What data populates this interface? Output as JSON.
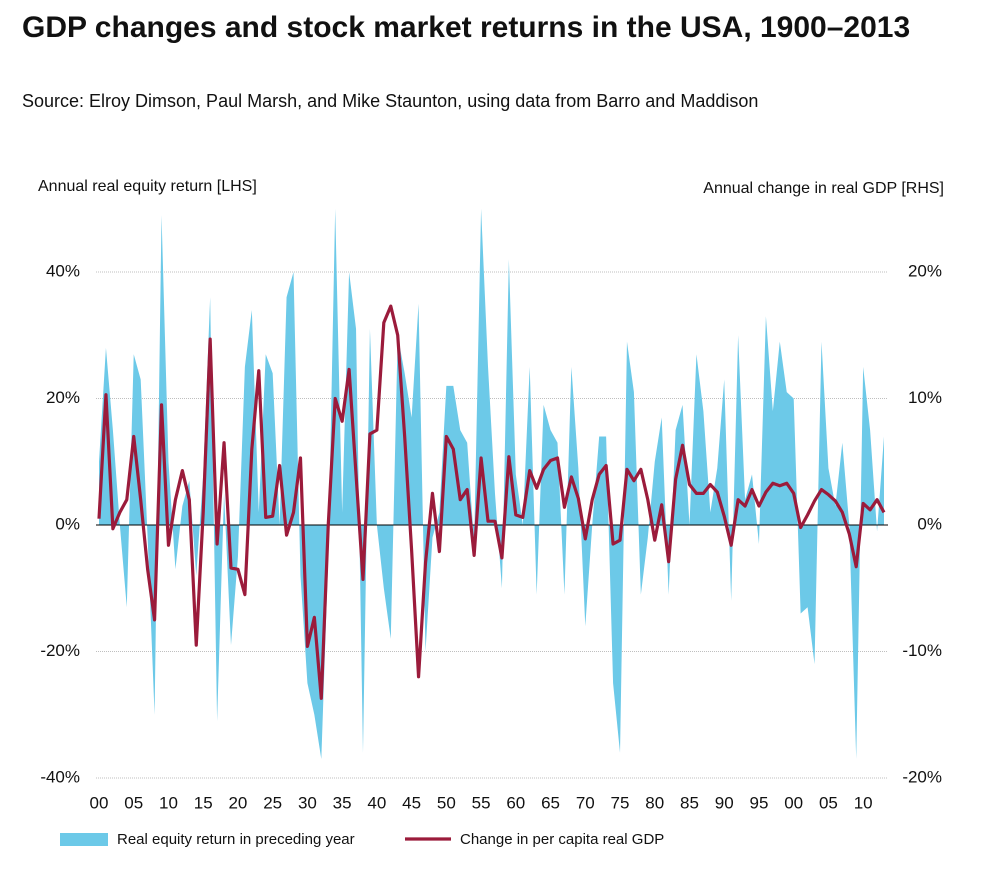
{
  "chart_data": {
    "type": "combo",
    "title": "GDP changes and stock market returns in the USA, 1900–2013",
    "subtitle": "Source: Elroy Dimson, Paul Marsh, and Mike Staunton, using data from Barro and Maddison",
    "y_label": "Annual real equity return [LHS]",
    "y2_label": "Annual change in real GDP [RHS]",
    "x": [
      1900,
      1901,
      1902,
      1903,
      1904,
      1905,
      1906,
      1907,
      1908,
      1909,
      1910,
      1911,
      1912,
      1913,
      1914,
      1915,
      1916,
      1917,
      1918,
      1919,
      1920,
      1921,
      1922,
      1923,
      1924,
      1925,
      1926,
      1927,
      1928,
      1929,
      1930,
      1931,
      1932,
      1933,
      1934,
      1935,
      1936,
      1937,
      1938,
      1939,
      1940,
      1941,
      1942,
      1943,
      1944,
      1945,
      1946,
      1947,
      1948,
      1949,
      1950,
      1951,
      1952,
      1953,
      1954,
      1955,
      1956,
      1957,
      1958,
      1959,
      1960,
      1961,
      1962,
      1963,
      1964,
      1965,
      1966,
      1967,
      1968,
      1969,
      1970,
      1971,
      1972,
      1973,
      1974,
      1975,
      1976,
      1977,
      1978,
      1979,
      1980,
      1981,
      1982,
      1983,
      1984,
      1985,
      1986,
      1987,
      1988,
      1989,
      1990,
      1991,
      1992,
      1993,
      1994,
      1995,
      1996,
      1997,
      1998,
      1999,
      2000,
      2001,
      2002,
      2003,
      2004,
      2005,
      2006,
      2007,
      2008,
      2009,
      2010,
      2011,
      2012,
      2013
    ],
    "xlim": [
      1900,
      2013
    ],
    "xticks": [
      {
        "value": 1900,
        "label": "00"
      },
      {
        "value": 1905,
        "label": "05"
      },
      {
        "value": 1910,
        "label": "10"
      },
      {
        "value": 1915,
        "label": "15"
      },
      {
        "value": 1920,
        "label": "20"
      },
      {
        "value": 1925,
        "label": "25"
      },
      {
        "value": 1930,
        "label": "30"
      },
      {
        "value": 1935,
        "label": "35"
      },
      {
        "value": 1940,
        "label": "40"
      },
      {
        "value": 1945,
        "label": "45"
      },
      {
        "value": 1950,
        "label": "50"
      },
      {
        "value": 1955,
        "label": "55"
      },
      {
        "value": 1960,
        "label": "60"
      },
      {
        "value": 1965,
        "label": "65"
      },
      {
        "value": 1970,
        "label": "70"
      },
      {
        "value": 1975,
        "label": "75"
      },
      {
        "value": 1980,
        "label": "80"
      },
      {
        "value": 1985,
        "label": "85"
      },
      {
        "value": 1990,
        "label": "90"
      },
      {
        "value": 1995,
        "label": "95"
      },
      {
        "value": 2000,
        "label": "00"
      },
      {
        "value": 2005,
        "label": "05"
      },
      {
        "value": 2010,
        "label": "10"
      }
    ],
    "ylim": [
      -40,
      50
    ],
    "yticks": [
      {
        "value": -40,
        "label": "-40%"
      },
      {
        "value": -20,
        "label": "-20%"
      },
      {
        "value": 0,
        "label": "0%"
      },
      {
        "value": 20,
        "label": "20%"
      },
      {
        "value": 40,
        "label": "40%"
      }
    ],
    "y2lim": [
      -20,
      25
    ],
    "y2ticks": [
      {
        "value": -20,
        "label": "-20%"
      },
      {
        "value": -10,
        "label": "-10%"
      },
      {
        "value": 0,
        "label": "0%"
      },
      {
        "value": 10,
        "label": "10%"
      },
      {
        "value": 20,
        "label": "20%"
      }
    ],
    "grid": true,
    "series": [
      {
        "name": "Real equity return in preceding year",
        "type": "area",
        "color": "#6cc9e8",
        "values": [
          10,
          28,
          15,
          0,
          -13,
          27,
          23,
          -2,
          -30,
          49,
          10,
          -7,
          3,
          7,
          -8,
          8,
          36,
          -31,
          5,
          -19,
          -5,
          25,
          34,
          2,
          27,
          24,
          0,
          36,
          40,
          -8,
          -25,
          -30,
          -37,
          -5,
          50,
          2,
          40,
          31,
          -36,
          31,
          0,
          -10,
          -18,
          30,
          24,
          17,
          35,
          -20,
          -2,
          2,
          22,
          22,
          15,
          13,
          -3,
          50,
          25,
          5,
          -10,
          42,
          8,
          0,
          25,
          -11,
          19,
          15,
          13,
          -11,
          25,
          9,
          -16,
          0,
          14,
          14,
          -25,
          -36,
          29,
          21,
          -11,
          -2,
          10,
          17,
          -11,
          15,
          19,
          0,
          27,
          18,
          2,
          9,
          23,
          -12,
          30,
          4,
          8,
          -3,
          33,
          18,
          29,
          21,
          20,
          -14,
          -13,
          -22,
          29,
          9,
          3,
          13,
          0,
          -37,
          25,
          15,
          -1,
          14
        ]
      },
      {
        "name": "Change in per capita real GDP",
        "type": "line",
        "axis": "y2",
        "color": "#9b1b3b",
        "values": [
          0.5,
          10.3,
          -0.3,
          1,
          2,
          7,
          2,
          -3.5,
          -7.5,
          9.5,
          -1.6,
          2,
          4.3,
          2,
          -9.5,
          1,
          14.7,
          -1.5,
          6.5,
          -3.4,
          -3.5,
          -5.5,
          6,
          12.2,
          0.6,
          0.7,
          4.7,
          -0.8,
          1,
          5.3,
          -9.6,
          -7.3,
          -13.7,
          0,
          10,
          8.2,
          12.3,
          4,
          -4.3,
          7.2,
          7.5,
          16,
          17.3,
          15,
          7,
          -2,
          -12,
          -3,
          2.5,
          -2.1,
          7,
          6,
          2,
          2.8,
          -2.4,
          5.3,
          0.3,
          0.3,
          -2.6,
          5.4,
          0.8,
          0.6,
          4.3,
          2.9,
          4.4,
          5.1,
          5.3,
          1.4,
          3.8,
          2.1,
          -1.1,
          2,
          4,
          4.7,
          -1.5,
          -1.2,
          4.4,
          3.5,
          4.4,
          2,
          -1.2,
          1.6,
          -2.9,
          3.6,
          6.3,
          3.2,
          2.5,
          2.5,
          3.2,
          2.6,
          0.7,
          -1.6,
          2,
          1.5,
          2.8,
          1.5,
          2.6,
          3.3,
          3.1,
          3.3,
          2.5,
          -0.2,
          0.8,
          1.9,
          2.8,
          2.4,
          1.9,
          1,
          -0.7,
          -3.3,
          1.7,
          1.2,
          2,
          1
        ]
      }
    ]
  }
}
